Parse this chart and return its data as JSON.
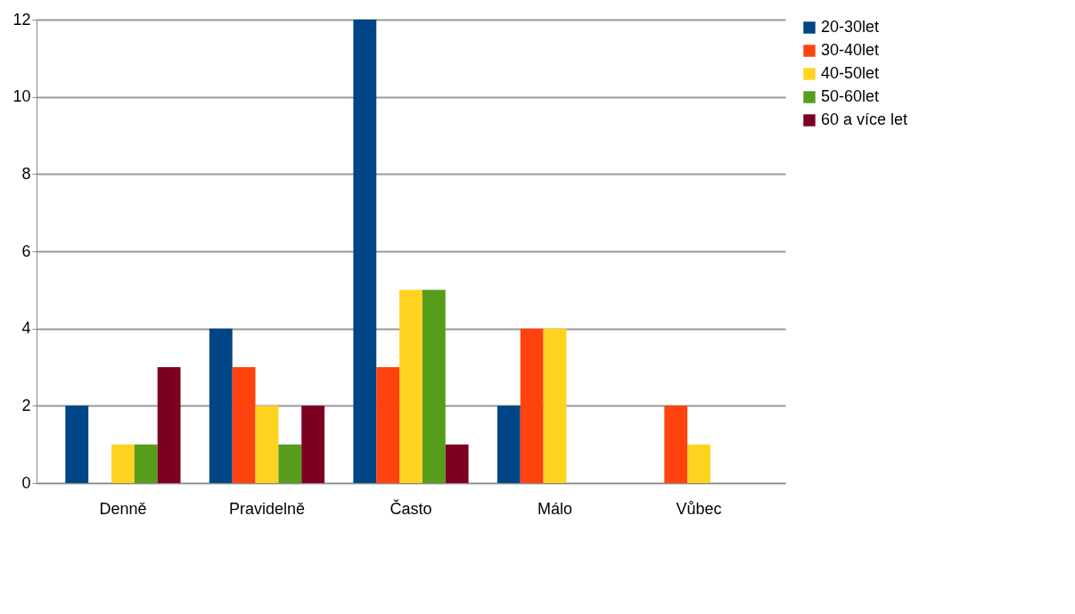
{
  "chart_data": {
    "type": "bar",
    "categories": [
      "Denně",
      "Pravidelně",
      "Často",
      "Málo",
      "Vůbec"
    ],
    "series": [
      {
        "name": "20-30let",
        "color": "#004586",
        "values": [
          2,
          4,
          12,
          2,
          0
        ]
      },
      {
        "name": "30-40let",
        "color": "#ff420e",
        "values": [
          0,
          3,
          3,
          4,
          2
        ]
      },
      {
        "name": "40-50let",
        "color": "#ffd320",
        "values": [
          1,
          2,
          5,
          4,
          1
        ]
      },
      {
        "name": "50-60let",
        "color": "#579d1c",
        "values": [
          1,
          1,
          5,
          0,
          0
        ]
      },
      {
        "name": "60 a více let",
        "color": "#7e0021",
        "values": [
          3,
          2,
          1,
          0,
          0
        ]
      }
    ],
    "ylim": [
      0,
      12
    ],
    "yticks": [
      0,
      2,
      4,
      6,
      8,
      10,
      12
    ],
    "grid": "y",
    "legend": "right"
  }
}
